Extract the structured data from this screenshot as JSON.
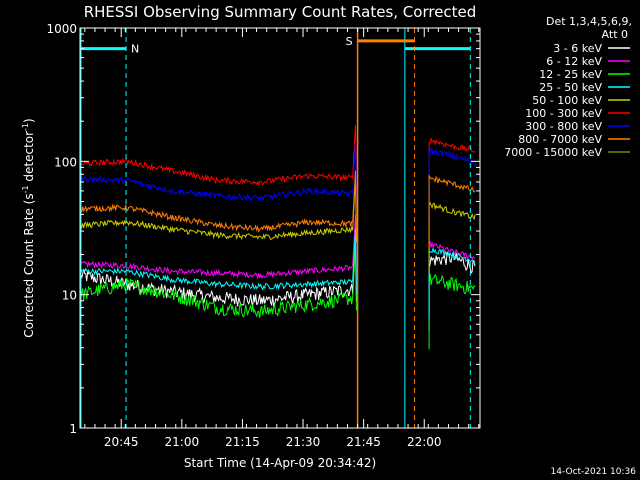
{
  "chart_data": {
    "type": "line",
    "title": "RHESSI Observing Summary Count Rates, Corrected",
    "xlabel": "Start Time (14-Apr-09 20:34:42)",
    "ylabel_main": "Corrected Count Rate (s",
    "ylabel_sup1": "-1",
    "ylabel_mid": " detector",
    "ylabel_sup2": "-1",
    "ylabel_end": ")",
    "y_scale": "log",
    "ylim": [
      1,
      1000
    ],
    "xlim_minutes": [
      20.58,
      22.23
    ],
    "x_ticks": [
      {
        "label": "20:45",
        "minute": 20.75
      },
      {
        "label": "21:00",
        "minute": 21.0
      },
      {
        "label": "21:15",
        "minute": 21.25
      },
      {
        "label": "21:30",
        "minute": 21.5
      },
      {
        "label": "21:45",
        "minute": 21.75
      },
      {
        "label": "22:00",
        "minute": 22.0
      }
    ],
    "y_ticks": [
      {
        "label": "1",
        "value": 1
      },
      {
        "label": "10",
        "value": 10
      },
      {
        "label": "100",
        "value": 100
      },
      {
        "label": "1000",
        "value": 1000
      }
    ],
    "legend_header": [
      "Det 1,3,4,5,6,9,",
      "Att 0"
    ],
    "legend_placement": "right",
    "series": [
      {
        "name": "3 - 6 keV",
        "color": "#ffffff",
        "pre": [
          14,
          12,
          10.5,
          9.5,
          9,
          10,
          11
        ],
        "post": [
          18,
          19,
          16
        ]
      },
      {
        "name": "6 - 12 keV",
        "color": "#ff00ff",
        "pre": [
          17,
          16.5,
          15,
          14.5,
          14,
          15,
          16
        ],
        "post": [
          24,
          21,
          19
        ]
      },
      {
        "name": "12 - 25 keV",
        "color": "#00ff00",
        "pre": [
          10,
          12,
          10,
          8,
          7.5,
          8.5,
          9.5
        ],
        "post": [
          13,
          12,
          11
        ]
      },
      {
        "name": "25 - 50 keV",
        "color": "#00ffff",
        "pre": [
          15,
          15,
          13,
          12,
          11.5,
          12,
          12.5
        ],
        "post": [
          22,
          20,
          18
        ]
      },
      {
        "name": "50 - 100 keV",
        "color": "#cccc00",
        "pre": [
          33,
          35,
          31,
          28,
          27,
          29,
          31
        ],
        "post": [
          48,
          42,
          38
        ]
      },
      {
        "name": "100 - 300 keV",
        "color": "#ff0000",
        "pre": [
          96,
          100,
          85,
          72,
          70,
          78,
          75
        ],
        "post": [
          145,
          130,
          120
        ]
      },
      {
        "name": "300 - 800 keV",
        "color": "#0000ff",
        "pre": [
          74,
          72,
          60,
          55,
          53,
          60,
          57
        ],
        "post": [
          120,
          110,
          98
        ]
      },
      {
        "name": "800 - 7000 keV",
        "color": "#ff8000",
        "pre": [
          44,
          45,
          38,
          33,
          31,
          35,
          34
        ],
        "post": [
          75,
          68,
          60
        ]
      },
      {
        "name": "7000 - 15000 keV",
        "color": "#808000",
        "pre": [],
        "post": []
      }
    ],
    "markers": {
      "N_label": "N",
      "S_label": "S",
      "cyan_level": 700,
      "orange_level": 800
    },
    "stamp": "14-Oct-2021 10:36"
  }
}
